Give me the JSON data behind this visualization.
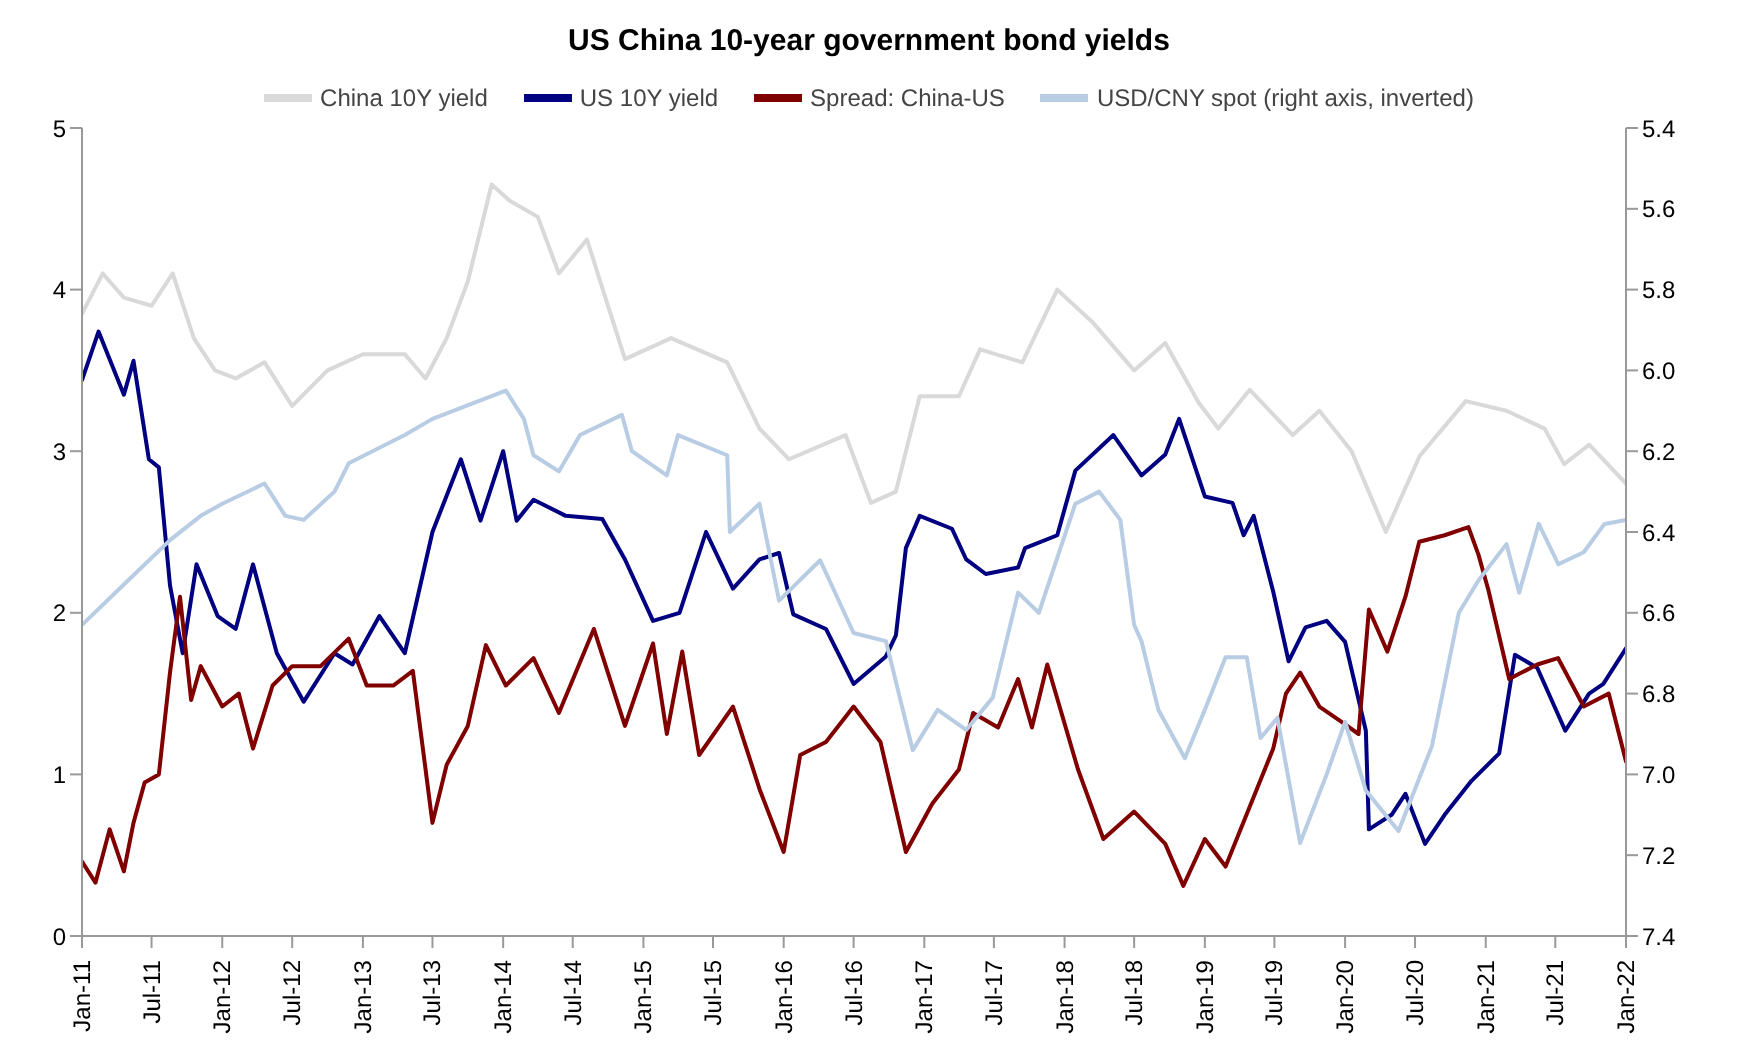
{
  "chart_data": {
    "type": "line",
    "title": "US China 10-year government bond yields",
    "legend": "top",
    "marker": "none",
    "line_style": "solid",
    "xlim": [
      "2011-01",
      "2022-01"
    ],
    "xticks": [
      {
        "value": "2011-01",
        "label": "Jan-11"
      },
      {
        "value": "2011-07",
        "label": "Jul-11"
      },
      {
        "value": "2012-01",
        "label": "Jan-12"
      },
      {
        "value": "2012-07",
        "label": "Jul-12"
      },
      {
        "value": "2013-01",
        "label": "Jan-13"
      },
      {
        "value": "2013-07",
        "label": "Jul-13"
      },
      {
        "value": "2014-01",
        "label": "Jan-14"
      },
      {
        "value": "2014-07",
        "label": "Jul-14"
      },
      {
        "value": "2015-01",
        "label": "Jan-15"
      },
      {
        "value": "2015-07",
        "label": "Jul-15"
      },
      {
        "value": "2016-01",
        "label": "Jan-16"
      },
      {
        "value": "2016-07",
        "label": "Jul-16"
      },
      {
        "value": "2017-01",
        "label": "Jan-17"
      },
      {
        "value": "2017-07",
        "label": "Jul-17"
      },
      {
        "value": "2018-01",
        "label": "Jan-18"
      },
      {
        "value": "2018-07",
        "label": "Jul-18"
      },
      {
        "value": "2019-01",
        "label": "Jan-19"
      },
      {
        "value": "2019-07",
        "label": "Jul-19"
      },
      {
        "value": "2020-01",
        "label": "Jan-20"
      },
      {
        "value": "2020-07",
        "label": "Jul-20"
      },
      {
        "value": "2021-01",
        "label": "Jan-21"
      },
      {
        "value": "2021-07",
        "label": "Jul-21"
      },
      {
        "value": "2022-01",
        "label": "Jan-22"
      }
    ],
    "ylim": [
      0,
      5
    ],
    "yticks": [
      0,
      1,
      2,
      3,
      4,
      5
    ],
    "y2lim": [
      7.4,
      5.4
    ],
    "y2ticks": [
      5.4,
      5.6,
      5.8,
      {
        "value": 6,
        "label": "6.0"
      },
      6.2,
      6.4,
      6.6,
      6.8,
      {
        "value": 7,
        "label": "7.0"
      },
      7.2,
      7.4
    ],
    "series": [
      {
        "name": "China 10Y yield",
        "color": "#d9d9d9",
        "x": [
          "2011-01-01",
          "2011-02-24",
          "2011-04-20",
          "2011-07-01",
          "2011-08-25",
          "2011-10-19",
          "2011-12-13",
          "2012-02-05",
          "2012-04-20",
          "2012-07-01",
          "2012-10-01",
          "2013-01-01",
          "2013-04-20",
          "2013-06-13",
          "2013-08-07",
          "2013-10-01",
          "2013-12-02",
          "2014-01-18",
          "2014-04-01",
          "2014-05-26",
          "2014-08-07",
          "2014-11-14",
          "2015-03-14",
          "2015-08-07",
          "2015-10-30",
          "2016-01-15",
          "2016-06-10",
          "2016-08-15",
          "2016-10-19",
          "2016-12-20",
          "2017-04-01",
          "2017-05-26",
          "2017-09-13",
          "2017-12-13",
          "2018-03-14",
          "2018-07-01",
          "2018-09-20",
          "2018-12-16",
          "2019-02-05",
          "2019-04-28",
          "2019-08-18",
          "2019-10-26",
          "2020-01-18",
          "2020-04-16",
          "2020-07-13",
          "2020-11-10",
          "2021-02-24",
          "2021-06-03",
          "2021-07-24",
          "2021-09-27",
          "2022-01-01"
        ],
        "values": [
          3.85,
          4.1,
          3.95,
          3.9,
          4.1,
          3.7,
          3.5,
          3.45,
          3.55,
          3.28,
          3.5,
          3.6,
          3.6,
          3.45,
          3.7,
          4.05,
          4.65,
          4.55,
          4.45,
          4.1,
          4.31,
          3.57,
          3.7,
          3.55,
          3.14,
          2.95,
          3.1,
          2.68,
          2.75,
          3.34,
          3.34,
          3.63,
          3.55,
          4.0,
          3.8,
          3.5,
          3.67,
          3.3,
          3.14,
          3.38,
          3.1,
          3.25,
          3.0,
          2.5,
          2.97,
          3.31,
          3.25,
          3.14,
          2.92,
          3.04,
          2.8
        ]
      },
      {
        "name": "US 10Y yield",
        "color": "#000080",
        "x": [
          "2011-01-01",
          "2011-02-13",
          "2011-04-20",
          "2011-05-15",
          "2011-06-24",
          "2011-07-20",
          "2011-08-18",
          "2011-09-20",
          "2011-10-26",
          "2011-12-20",
          "2012-02-05",
          "2012-03-21",
          "2012-05-22",
          "2012-07-31",
          "2012-10-19",
          "2012-12-05",
          "2013-02-13",
          "2013-04-20",
          "2013-07-01",
          "2013-09-13",
          "2013-11-03",
          "2014-01-01",
          "2014-02-05",
          "2014-03-21",
          "2014-06-13",
          "2014-09-16",
          "2014-11-14",
          "2015-01-26",
          "2015-04-05",
          "2015-06-13",
          "2015-08-22",
          "2015-10-30",
          "2015-12-20",
          "2016-01-26",
          "2016-04-20",
          "2016-07-01",
          "2016-09-23",
          "2016-10-19",
          "2016-11-14",
          "2016-12-20",
          "2017-03-14",
          "2017-04-20",
          "2017-06-10",
          "2017-09-02",
          "2017-09-20",
          "2017-12-13",
          "2018-01-29",
          "2018-05-08",
          "2018-07-20",
          "2018-09-20",
          "2018-10-26",
          "2019-01-01",
          "2019-03-14",
          "2019-04-12",
          "2019-05-08",
          "2019-06-28",
          "2019-08-07",
          "2019-09-20",
          "2019-11-14",
          "2020-01-01",
          "2020-02-24",
          "2020-03-03",
          "2020-05-01",
          "2020-06-06",
          "2020-07-27",
          "2020-09-16",
          "2020-11-25",
          "2021-02-05",
          "2021-03-18",
          "2021-05-15",
          "2021-07-27",
          "2021-09-27",
          "2021-11-03",
          "2022-01-01"
        ],
        "values": [
          3.44,
          3.74,
          3.35,
          3.56,
          2.95,
          2.9,
          2.17,
          1.75,
          2.3,
          1.98,
          1.9,
          2.3,
          1.75,
          1.45,
          1.75,
          1.68,
          1.98,
          1.75,
          2.5,
          2.95,
          2.57,
          3.0,
          2.57,
          2.7,
          2.6,
          2.58,
          2.33,
          1.95,
          2.0,
          2.5,
          2.15,
          2.33,
          2.37,
          1.99,
          1.9,
          1.56,
          1.73,
          1.86,
          2.4,
          2.6,
          2.52,
          2.33,
          2.24,
          2.28,
          2.4,
          2.48,
          2.88,
          3.1,
          2.85,
          2.98,
          3.2,
          2.72,
          2.68,
          2.48,
          2.6,
          2.13,
          1.7,
          1.91,
          1.95,
          1.82,
          1.27,
          0.66,
          0.75,
          0.88,
          0.57,
          0.75,
          0.96,
          1.13,
          1.74,
          1.66,
          1.27,
          1.5,
          1.56,
          1.78
        ]
      },
      {
        "name": "Spread: China-US",
        "color": "#800000",
        "x": [
          "2011-01-01",
          "2011-02-05",
          "2011-03-14",
          "2011-04-20",
          "2011-05-15",
          "2011-06-13",
          "2011-07-20",
          "2011-08-18",
          "2011-09-13",
          "2011-10-12",
          "2011-11-06",
          "2012-01-01",
          "2012-02-13",
          "2012-03-21",
          "2012-05-11",
          "2012-07-01",
          "2012-09-13",
          "2012-11-25",
          "2013-01-11",
          "2013-03-21",
          "2013-05-11",
          "2013-07-01",
          "2013-08-07",
          "2013-10-01",
          "2013-11-17",
          "2014-01-08",
          "2014-03-21",
          "2014-05-26",
          "2014-08-25",
          "2014-11-14",
          "2015-01-26",
          "2015-03-03",
          "2015-04-12",
          "2015-05-26",
          "2015-08-22",
          "2015-10-30",
          "2016-01-01",
          "2016-02-13",
          "2016-04-20",
          "2016-07-01",
          "2016-09-09",
          "2016-11-14",
          "2017-01-22",
          "2017-04-01",
          "2017-05-08",
          "2017-07-12",
          "2017-09-02",
          "2017-10-08",
          "2017-11-17",
          "2018-02-05",
          "2018-04-12",
          "2018-07-01",
          "2018-09-20",
          "2018-11-06",
          "2019-01-01",
          "2019-02-24",
          "2019-05-08",
          "2019-06-28",
          "2019-07-31",
          "2019-09-06",
          "2019-10-26",
          "2019-12-20",
          "2020-02-05",
          "2020-03-03",
          "2020-04-20",
          "2020-06-06",
          "2020-07-12",
          "2020-09-16",
          "2020-11-17",
          "2020-12-13",
          "2021-01-08",
          "2021-03-03",
          "2021-05-15",
          "2021-07-08",
          "2021-09-13",
          "2021-11-17",
          "2022-01-01"
        ],
        "values": [
          0.46,
          0.33,
          0.66,
          0.4,
          0.7,
          0.95,
          1.0,
          1.63,
          2.1,
          1.46,
          1.67,
          1.42,
          1.5,
          1.16,
          1.55,
          1.67,
          1.67,
          1.84,
          1.55,
          1.55,
          1.64,
          0.7,
          1.06,
          1.3,
          1.8,
          1.55,
          1.72,
          1.38,
          1.9,
          1.3,
          1.81,
          1.25,
          1.76,
          1.12,
          1.42,
          0.91,
          0.52,
          1.12,
          1.2,
          1.42,
          1.2,
          0.52,
          0.82,
          1.03,
          1.38,
          1.29,
          1.59,
          1.29,
          1.68,
          1.03,
          0.6,
          0.77,
          0.57,
          0.31,
          0.6,
          0.43,
          0.86,
          1.16,
          1.5,
          1.63,
          1.42,
          1.33,
          1.25,
          2.02,
          1.76,
          2.1,
          2.44,
          2.48,
          2.53,
          2.36,
          2.14,
          1.59,
          1.68,
          1.72,
          1.42,
          1.5,
          1.08
        ]
      },
      {
        "name": "USD/CNY spot (right axis, inverted)",
        "color": "#b8cce4",
        "axis": "y2",
        "x": [
          "2011-01-01",
          "2011-04-20",
          "2011-08-18",
          "2011-11-06",
          "2012-01-01",
          "2012-04-20",
          "2012-06-13",
          "2012-07-31",
          "2012-10-19",
          "2012-11-25",
          "2013-04-20",
          "2013-07-01",
          "2014-01-08",
          "2014-02-24",
          "2014-03-21",
          "2014-05-26",
          "2014-07-20",
          "2014-11-06",
          "2014-12-02",
          "2015-03-03",
          "2015-04-01",
          "2015-08-07",
          "2015-08-14",
          "2015-10-30",
          "2015-12-20",
          "2016-04-05",
          "2016-07-01",
          "2016-09-23",
          "2016-12-02",
          "2017-02-05",
          "2017-04-20",
          "2017-06-28",
          "2017-09-02",
          "2017-10-26",
          "2018-01-29",
          "2018-04-01",
          "2018-05-26",
          "2018-07-01",
          "2018-07-20",
          "2018-09-02",
          "2018-11-10",
          "2019-01-01",
          "2019-02-24",
          "2019-04-20",
          "2019-05-26",
          "2019-07-09",
          "2019-09-06",
          "2019-11-14",
          "2020-01-01",
          "2020-02-24",
          "2020-05-19",
          "2020-08-14",
          "2020-10-23",
          "2020-12-13",
          "2021-02-24",
          "2021-03-29",
          "2021-05-19",
          "2021-07-09",
          "2021-09-13",
          "2021-11-06",
          "2022-01-01"
        ],
        "values": [
          6.63,
          6.53,
          6.42,
          6.36,
          6.33,
          6.28,
          6.36,
          6.37,
          6.3,
          6.23,
          6.16,
          6.12,
          6.05,
          6.12,
          6.21,
          6.25,
          6.16,
          6.11,
          6.2,
          6.26,
          6.16,
          6.21,
          6.4,
          6.33,
          6.57,
          6.47,
          6.65,
          6.67,
          6.94,
          6.84,
          6.89,
          6.81,
          6.55,
          6.6,
          6.33,
          6.3,
          6.37,
          6.63,
          6.67,
          6.84,
          6.96,
          6.84,
          6.71,
          6.71,
          6.91,
          6.86,
          7.17,
          7.0,
          6.87,
          7.04,
          7.14,
          6.93,
          6.6,
          6.52,
          6.43,
          6.55,
          6.38,
          6.48,
          6.45,
          6.38,
          6.37
        ]
      }
    ]
  }
}
